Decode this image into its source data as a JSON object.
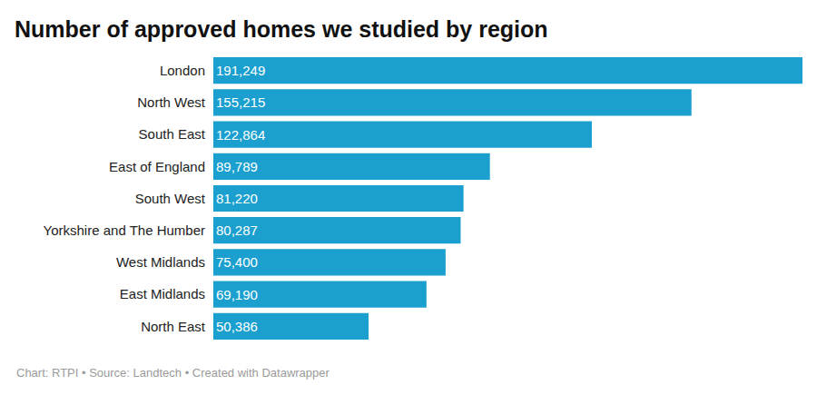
{
  "chart_data": {
    "type": "bar",
    "orientation": "horizontal",
    "title": "Number of approved homes we studied by region",
    "categories": [
      "London",
      "North West",
      "South East",
      "East of England",
      "South West",
      "Yorkshire and The Humber",
      "West Midlands",
      "East Midlands",
      "North East"
    ],
    "values": [
      191249,
      155215,
      122864,
      89789,
      81220,
      80287,
      75400,
      69190,
      50386
    ],
    "value_labels": [
      "191,249",
      "155,215",
      "122,864",
      "89,789",
      "81,220",
      "80,287",
      "75,400",
      "69,190",
      "50,386"
    ],
    "data_labels": true,
    "color": "#1a9fcf",
    "grid": false,
    "tick_labels": "y",
    "annotations": [
      "Chart: RTPI • Source: Landtech • Created with Datawrapper"
    ]
  }
}
